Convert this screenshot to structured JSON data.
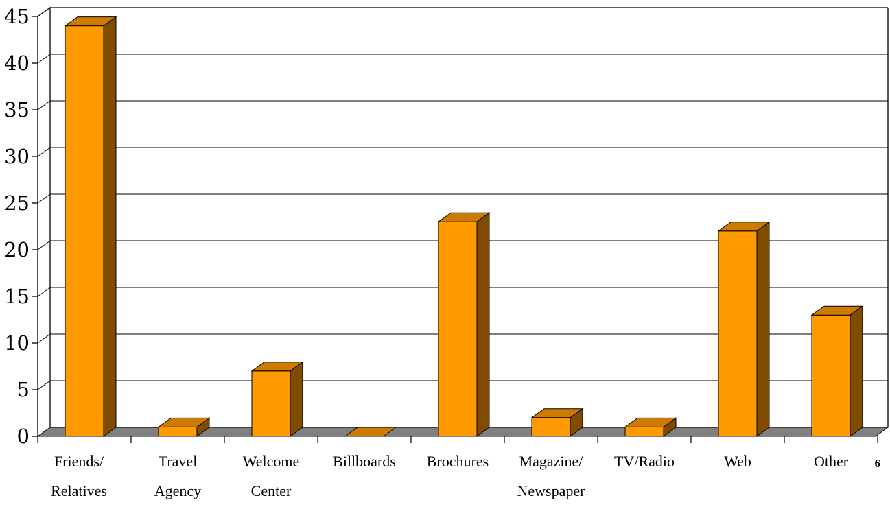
{
  "chart_data": {
    "type": "bar",
    "title": "",
    "xlabel": "",
    "ylabel": "",
    "categories": [
      [
        "Friends/",
        "Relatives"
      ],
      [
        "Travel",
        "Agency"
      ],
      [
        "Welcome",
        "Center"
      ],
      [
        "Billboards"
      ],
      [
        "Brochures"
      ],
      [
        "Magazine/",
        "Newspaper"
      ],
      [
        "TV/Radio"
      ],
      [
        "Web"
      ],
      [
        "Other"
      ]
    ],
    "values": [
      44,
      1,
      7,
      0,
      23,
      2,
      1,
      22,
      13
    ],
    "ylim": [
      0,
      45
    ],
    "yticks": [
      "0",
      "5",
      "10",
      "15",
      "20",
      "25",
      "30",
      "35",
      "40",
      "45"
    ],
    "grid": true,
    "legend": "none",
    "three_d": true,
    "colors": {
      "bar_front": "#FF9900",
      "bar_top": "#CC7A00",
      "bar_side": "#7F4C00",
      "floor": "#808080",
      "gridline": "#000000"
    }
  },
  "page_number": "6"
}
